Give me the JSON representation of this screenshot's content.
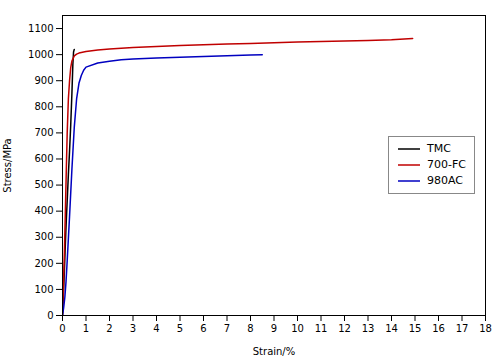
{
  "chart_data": {
    "type": "line",
    "xlabel": "Strain/%",
    "ylabel": "Stress/MPa",
    "xlim": [
      0,
      18
    ],
    "ylim": [
      0,
      1150
    ],
    "xticks": [
      0,
      1,
      2,
      3,
      4,
      5,
      6,
      7,
      8,
      9,
      10,
      11,
      12,
      13,
      14,
      15,
      16,
      17,
      18
    ],
    "yticks": [
      0,
      100,
      200,
      300,
      400,
      500,
      600,
      700,
      800,
      900,
      1000,
      1100
    ],
    "grid": false,
    "legend": "right",
    "series": [
      {
        "name": "TMC",
        "color": "#000000",
        "x": [
          0.0,
          0.04,
          0.08,
          0.12,
          0.16,
          0.2,
          0.25,
          0.3,
          0.35,
          0.4,
          0.44,
          0.47,
          0.5
        ],
        "values": [
          0,
          80,
          170,
          270,
          360,
          440,
          540,
          630,
          730,
          850,
          960,
          1010,
          1020
        ]
      },
      {
        "name": "700-FC",
        "color": "#c00000",
        "x": [
          0.0,
          0.04,
          0.08,
          0.12,
          0.16,
          0.2,
          0.25,
          0.3,
          0.35,
          0.4,
          0.5,
          0.6,
          0.7,
          0.8,
          0.9,
          1.0,
          1.5,
          2.0,
          3.0,
          4.0,
          5.0,
          6.0,
          7.0,
          8.0,
          9.0,
          10.0,
          11.0,
          12.0,
          13.0,
          14.0,
          14.9
        ],
        "values": [
          0,
          120,
          240,
          390,
          550,
          700,
          830,
          900,
          950,
          975,
          995,
          1002,
          1006,
          1008,
          1010,
          1012,
          1018,
          1022,
          1027,
          1031,
          1035,
          1038,
          1041,
          1043,
          1046,
          1048,
          1050,
          1052,
          1054,
          1057,
          1062
        ]
      },
      {
        "name": "980AC",
        "color": "#0000c0",
        "x": [
          0.0,
          0.05,
          0.1,
          0.15,
          0.2,
          0.3,
          0.4,
          0.5,
          0.6,
          0.7,
          0.8,
          0.9,
          1.0,
          1.5,
          2.0,
          2.5,
          3.0,
          4.0,
          5.0,
          6.0,
          7.0,
          8.0,
          8.5
        ],
        "values": [
          0,
          30,
          70,
          130,
          210,
          380,
          560,
          720,
          830,
          890,
          920,
          940,
          952,
          968,
          975,
          980,
          983,
          987,
          990,
          993,
          996,
          999,
          1000
        ]
      }
    ]
  }
}
